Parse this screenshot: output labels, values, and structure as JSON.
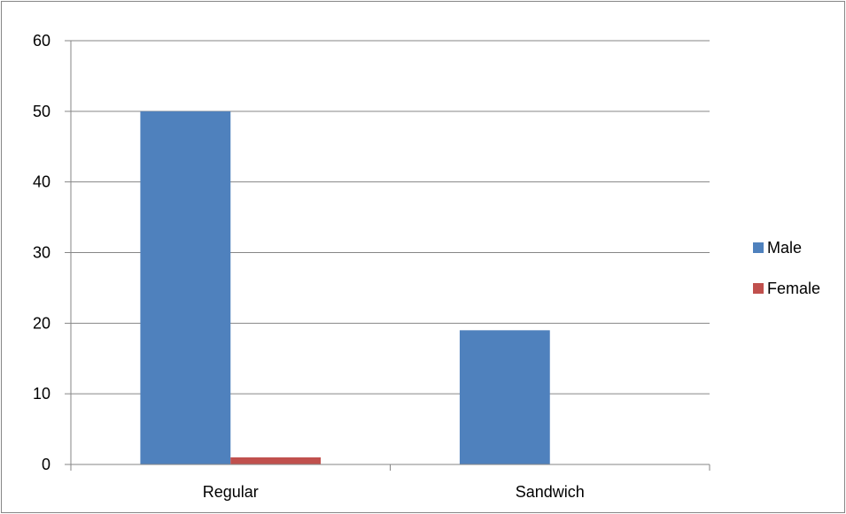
{
  "chart_data": {
    "type": "bar",
    "categories": [
      "Regular",
      "Sandwich"
    ],
    "series": [
      {
        "name": "Male",
        "color": "#4f81bd",
        "values": [
          50,
          19
        ]
      },
      {
        "name": "Female",
        "color": "#c0504d",
        "values": [
          1,
          0
        ]
      }
    ],
    "title": "",
    "xlabel": "",
    "ylabel": "",
    "ylim": [
      0,
      60
    ],
    "yticks": [
      0,
      10,
      20,
      30,
      40,
      50,
      60
    ],
    "grid": true,
    "legend_position": "right"
  }
}
